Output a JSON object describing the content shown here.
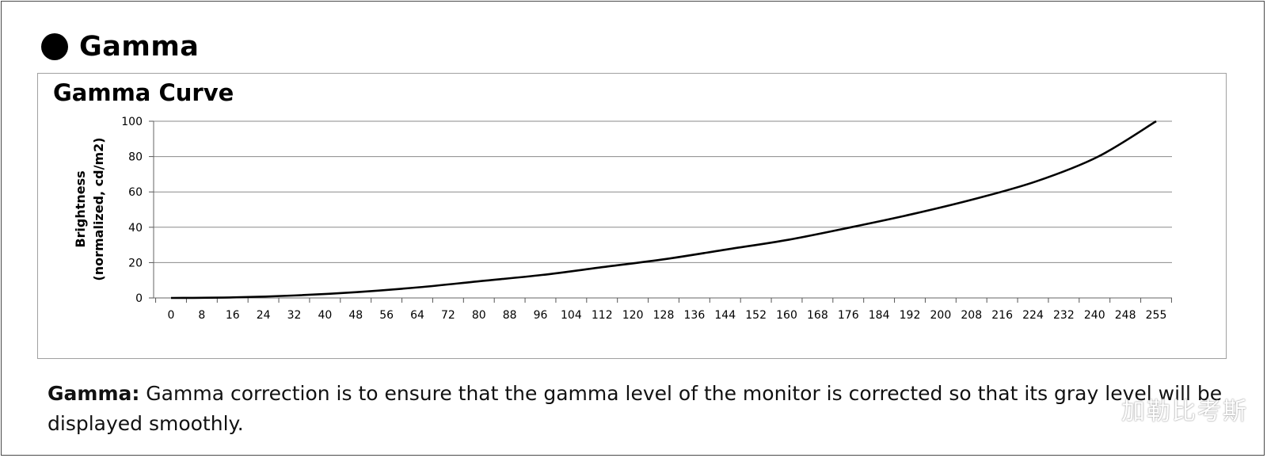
{
  "section": {
    "title": "Gamma"
  },
  "description": {
    "term": "Gamma:",
    "line1": " Gamma correction is to ensure that the gamma level of the monitor is corrected so that its gray level will be",
    "line2": "displayed smoothly."
  },
  "watermark": "加勒比考斯",
  "chart_data": {
    "type": "line",
    "title": "Gamma Curve",
    "ylabel_line1": "Brightness",
    "ylabel_line2": "(normalized, cd/m2)",
    "xlabel": "",
    "xlim": [
      0,
      255
    ],
    "ylim": [
      0,
      100
    ],
    "y_ticks": [
      0,
      20,
      40,
      60,
      80,
      100
    ],
    "x_ticks": [
      0,
      8,
      16,
      24,
      32,
      40,
      48,
      56,
      64,
      72,
      80,
      88,
      96,
      104,
      112,
      120,
      128,
      136,
      144,
      152,
      160,
      168,
      176,
      184,
      192,
      200,
      208,
      216,
      224,
      232,
      240,
      248,
      255
    ],
    "grid": "horizontal",
    "legend": "none",
    "line_color": "#000000",
    "series": [
      {
        "x": [
          0,
          16,
          32,
          48,
          64,
          80,
          96,
          112,
          128,
          144,
          160,
          176,
          192,
          208,
          224,
          240,
          255
        ],
        "values": [
          0,
          0.3,
          1.4,
          3.3,
          6,
          9.5,
          13,
          17.5,
          22,
          27.5,
          33,
          40,
          47.5,
          56,
          66,
          80,
          100
        ]
      }
    ]
  }
}
